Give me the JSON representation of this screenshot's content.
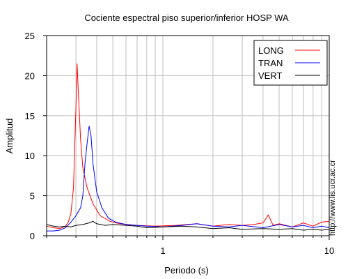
{
  "chart_data": {
    "type": "line",
    "title": "Cociente espectral piso superior/inferior  HOSP WA",
    "xlabel": "Periodo (s)",
    "ylabel": "Amplitud",
    "xscale": "log",
    "xlim": [
      0.2,
      10
    ],
    "ylim": [
      0,
      25
    ],
    "x_tick_labels": [
      "1",
      "10"
    ],
    "y_ticks": [
      0,
      5,
      10,
      15,
      20,
      25
    ],
    "grid": true,
    "legend_position": "top-right",
    "series": [
      {
        "name": "LONG",
        "color": "#ff0000",
        "points": [
          [
            0.2,
            1.2
          ],
          [
            0.22,
            1.0
          ],
          [
            0.24,
            0.9
          ],
          [
            0.26,
            1.2
          ],
          [
            0.27,
            1.7
          ],
          [
            0.28,
            2.8
          ],
          [
            0.29,
            6.0
          ],
          [
            0.295,
            11.0
          ],
          [
            0.3,
            16.0
          ],
          [
            0.305,
            21.5
          ],
          [
            0.31,
            18.0
          ],
          [
            0.32,
            12.0
          ],
          [
            0.33,
            8.5
          ],
          [
            0.35,
            6.0
          ],
          [
            0.38,
            4.0
          ],
          [
            0.42,
            2.5
          ],
          [
            0.48,
            1.8
          ],
          [
            0.55,
            1.5
          ],
          [
            0.7,
            1.3
          ],
          [
            0.9,
            1.2
          ],
          [
            1.2,
            1.3
          ],
          [
            1.6,
            1.5
          ],
          [
            2.0,
            1.2
          ],
          [
            2.5,
            1.4
          ],
          [
            3.0,
            1.3
          ],
          [
            3.5,
            1.4
          ],
          [
            4.0,
            1.6
          ],
          [
            4.3,
            2.6
          ],
          [
            4.6,
            1.3
          ],
          [
            5.0,
            1.5
          ],
          [
            6.0,
            1.1
          ],
          [
            7.0,
            1.6
          ],
          [
            8.0,
            1.2
          ],
          [
            9.0,
            1.7
          ],
          [
            10.0,
            1.8
          ]
        ]
      },
      {
        "name": "TRAN",
        "color": "#0000ff",
        "points": [
          [
            0.2,
            0.6
          ],
          [
            0.22,
            0.6
          ],
          [
            0.24,
            0.7
          ],
          [
            0.26,
            1.0
          ],
          [
            0.28,
            1.7
          ],
          [
            0.3,
            2.5
          ],
          [
            0.32,
            3.5
          ],
          [
            0.33,
            5.0
          ],
          [
            0.34,
            9.0
          ],
          [
            0.35,
            11.5
          ],
          [
            0.36,
            13.7
          ],
          [
            0.37,
            12.5
          ],
          [
            0.38,
            9.0
          ],
          [
            0.4,
            5.5
          ],
          [
            0.43,
            3.5
          ],
          [
            0.47,
            2.2
          ],
          [
            0.52,
            1.7
          ],
          [
            0.6,
            1.4
          ],
          [
            0.8,
            1.2
          ],
          [
            1.0,
            1.1
          ],
          [
            1.3,
            1.3
          ],
          [
            1.6,
            1.5
          ],
          [
            2.0,
            1.2
          ],
          [
            2.5,
            1.1
          ],
          [
            3.0,
            1.3
          ],
          [
            4.0,
            1.0
          ],
          [
            5.0,
            1.4
          ],
          [
            6.0,
            1.1
          ],
          [
            7.0,
            1.3
          ],
          [
            8.0,
            1.0
          ],
          [
            9.0,
            1.2
          ],
          [
            10.0,
            1.0
          ]
        ]
      },
      {
        "name": "VERT",
        "color": "#000000",
        "points": [
          [
            0.2,
            1.4
          ],
          [
            0.22,
            1.2
          ],
          [
            0.24,
            1.1
          ],
          [
            0.26,
            1.2
          ],
          [
            0.28,
            1.1
          ],
          [
            0.3,
            1.3
          ],
          [
            0.33,
            1.4
          ],
          [
            0.36,
            1.6
          ],
          [
            0.38,
            1.8
          ],
          [
            0.4,
            1.5
          ],
          [
            0.45,
            1.3
          ],
          [
            0.5,
            1.4
          ],
          [
            0.6,
            1.3
          ],
          [
            0.7,
            1.2
          ],
          [
            0.8,
            1.0
          ],
          [
            1.0,
            1.1
          ],
          [
            1.3,
            1.2
          ],
          [
            1.6,
            1.1
          ],
          [
            2.0,
            0.9
          ],
          [
            2.5,
            1.0
          ],
          [
            3.0,
            0.8
          ],
          [
            4.0,
            0.9
          ],
          [
            5.0,
            0.8
          ],
          [
            6.0,
            0.9
          ],
          [
            7.0,
            0.7
          ],
          [
            8.0,
            0.8
          ],
          [
            9.0,
            0.7
          ],
          [
            10.0,
            0.8
          ]
        ]
      }
    ]
  },
  "side_text": "http://www.lis.ucr.ac.cr"
}
